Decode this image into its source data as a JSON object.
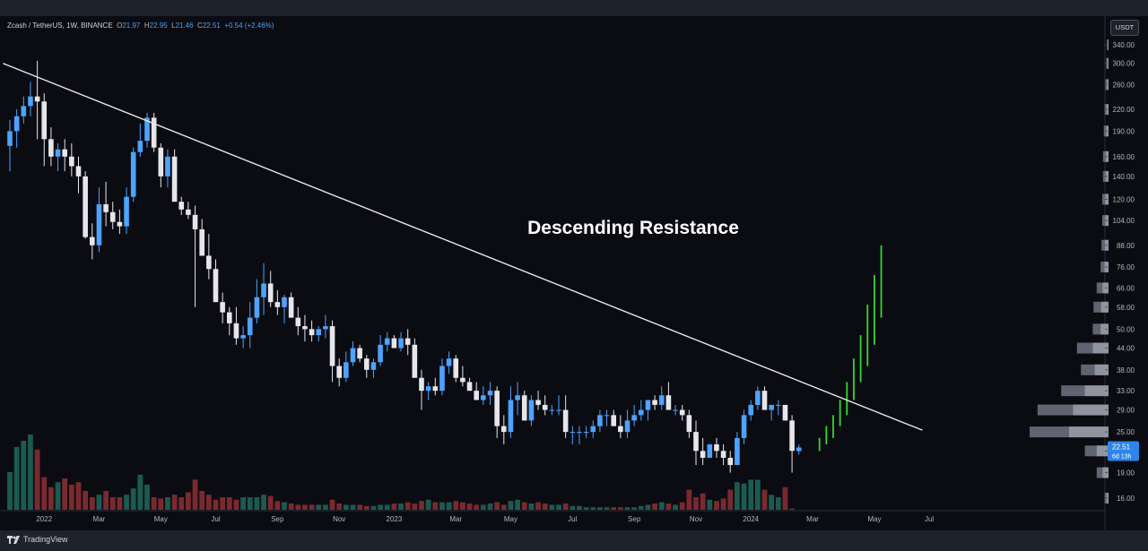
{
  "header": {
    "symbol": "Zcash / TetherUS, 1W, BINANCE",
    "open_label": "O",
    "open": "21.97",
    "high_label": "H",
    "high": "22.95",
    "low_label": "L",
    "low": "21.46",
    "close_label": "C",
    "close": "22.51",
    "change": "+0.54 (+2.46%)"
  },
  "currency_badge": "USDT",
  "footer": {
    "brand": "TradingView"
  },
  "colors": {
    "background": "#0b0c12",
    "candle_up": "#4da3ff",
    "candle_down": "#e6e6ea",
    "volume_up": "#1c5a50",
    "volume_down": "#7a2a2e",
    "projection": "#35d82f",
    "trendline": "#e8e8ec",
    "price_tag": "#2e85e8"
  },
  "chart_data": {
    "type": "candlestick",
    "y_scale": "log",
    "ylim": [
      15,
      370
    ],
    "y_ticks": [
      "340.00",
      "300.00",
      "260.00",
      "220.00",
      "190.00",
      "160.00",
      "140.00",
      "120.00",
      "104.00",
      "88.00",
      "76.00",
      "66.00",
      "58.00",
      "50.00",
      "44.00",
      "38.00",
      "33.00",
      "29.00",
      "25.00",
      "22.00",
      "19.00",
      "16.00"
    ],
    "x_ticks": [
      "2022",
      "Mar",
      "May",
      "Jul",
      "Sep",
      "Nov",
      "2023",
      "Mar",
      "May",
      "Jul",
      "Sep",
      "Nov",
      "2024",
      "Mar",
      "May",
      "Jul"
    ],
    "x_tick_weeks": [
      5,
      13,
      22,
      30,
      39,
      48,
      56,
      65,
      73,
      82,
      91,
      100,
      108,
      117,
      126,
      134
    ],
    "candles": [
      [
        172,
        145,
        205,
        190
      ],
      [
        190,
        170,
        220,
        210
      ],
      [
        210,
        200,
        240,
        225
      ],
      [
        225,
        210,
        265,
        240
      ],
      [
        240,
        180,
        305,
        232
      ],
      [
        232,
        150,
        245,
        180
      ],
      [
        180,
        150,
        195,
        160
      ],
      [
        160,
        145,
        175,
        168
      ],
      [
        168,
        145,
        180,
        160
      ],
      [
        160,
        140,
        175,
        150
      ],
      [
        150,
        125,
        160,
        140
      ],
      [
        140,
        92,
        145,
        93
      ],
      [
        93,
        80,
        102,
        88
      ],
      [
        88,
        84,
        130,
        116
      ],
      [
        116,
        100,
        135,
        110
      ],
      [
        110,
        98,
        118,
        103
      ],
      [
        103,
        95,
        112,
        100
      ],
      [
        100,
        95,
        130,
        122
      ],
      [
        122,
        118,
        170,
        165
      ],
      [
        165,
        160,
        200,
        178
      ],
      [
        178,
        170,
        215,
        208
      ],
      [
        208,
        165,
        215,
        170
      ],
      [
        170,
        130,
        175,
        140
      ],
      [
        140,
        130,
        168,
        160
      ],
      [
        160,
        120,
        168,
        118
      ],
      [
        118,
        108,
        122,
        112
      ],
      [
        112,
        105,
        118,
        108
      ],
      [
        108,
        58,
        115,
        98
      ],
      [
        98,
        82,
        105,
        82
      ],
      [
        82,
        70,
        95,
        75
      ],
      [
        75,
        60,
        80,
        60
      ],
      [
        60,
        52,
        64,
        56
      ],
      [
        56,
        48,
        58,
        52
      ],
      [
        52,
        45,
        58,
        47
      ],
      [
        47,
        44,
        51,
        48
      ],
      [
        48,
        44,
        60,
        54
      ],
      [
        54,
        52,
        70,
        62
      ],
      [
        62,
        55,
        78,
        68
      ],
      [
        68,
        58,
        74,
        60
      ],
      [
        60,
        55,
        65,
        58
      ],
      [
        58,
        52,
        63,
        62
      ],
      [
        62,
        54,
        64,
        54
      ],
      [
        54,
        48,
        58,
        51
      ],
      [
        51,
        46,
        55,
        50
      ],
      [
        50,
        46,
        53,
        48
      ],
      [
        48,
        46,
        51,
        50
      ],
      [
        50,
        47,
        55,
        51
      ],
      [
        51,
        35,
        53,
        39
      ],
      [
        39,
        34,
        41,
        36
      ],
      [
        36,
        35,
        43,
        40
      ],
      [
        40,
        39,
        46,
        44
      ],
      [
        44,
        40,
        45,
        41
      ],
      [
        41,
        36,
        42,
        38
      ],
      [
        38,
        36,
        41,
        40
      ],
      [
        40,
        39,
        48,
        45
      ],
      [
        45,
        43,
        49,
        47
      ],
      [
        47,
        44,
        48,
        44
      ],
      [
        44,
        43,
        49,
        47
      ],
      [
        47,
        42,
        50,
        45
      ],
      [
        45,
        37,
        47,
        36
      ],
      [
        36,
        29,
        38,
        33
      ],
      [
        33,
        31,
        35,
        34
      ],
      [
        34,
        32,
        36,
        33
      ],
      [
        33,
        32,
        41,
        39
      ],
      [
        39,
        37,
        43,
        41
      ],
      [
        41,
        35,
        42,
        36
      ],
      [
        36,
        34,
        39,
        35
      ],
      [
        35,
        33,
        36,
        33
      ],
      [
        33,
        31,
        35,
        31
      ],
      [
        31,
        30,
        34,
        32
      ],
      [
        32,
        30,
        35,
        33
      ],
      [
        33,
        24,
        34,
        26
      ],
      [
        26,
        23,
        28,
        25
      ],
      [
        25,
        24,
        34,
        31
      ],
      [
        31,
        28,
        35,
        32
      ],
      [
        32,
        27,
        33,
        27
      ],
      [
        27,
        26,
        32,
        31
      ],
      [
        31,
        29,
        33,
        30
      ],
      [
        30,
        28,
        32,
        29
      ],
      [
        29,
        28,
        30,
        29
      ],
      [
        29,
        28,
        32,
        29
      ],
      [
        29,
        24,
        32,
        25
      ],
      [
        25,
        23,
        26,
        25
      ],
      [
        25,
        23,
        26,
        25
      ],
      [
        25,
        24,
        26,
        25
      ],
      [
        25,
        24,
        27,
        26
      ],
      [
        26,
        25,
        29,
        28
      ],
      [
        28,
        26,
        29,
        28
      ],
      [
        28,
        26,
        29,
        26
      ],
      [
        26,
        24,
        28,
        25
      ],
      [
        25,
        24,
        29,
        27
      ],
      [
        27,
        26,
        30,
        28
      ],
      [
        28,
        27,
        31,
        29
      ],
      [
        29,
        27,
        31,
        31
      ],
      [
        31,
        29,
        32,
        30
      ],
      [
        30,
        29,
        34,
        32
      ],
      [
        32,
        30,
        35,
        29
      ],
      [
        29,
        28,
        30,
        29
      ],
      [
        29,
        27,
        30,
        28
      ],
      [
        28,
        24,
        29,
        25
      ],
      [
        25,
        20,
        27,
        22
      ],
      [
        22,
        20,
        24,
        21
      ],
      [
        21,
        21,
        23,
        23
      ],
      [
        23,
        21,
        24,
        22
      ],
      [
        22,
        20,
        23,
        21
      ],
      [
        21,
        19,
        22,
        20
      ],
      [
        20,
        20,
        25,
        24
      ],
      [
        24,
        23,
        29,
        28
      ],
      [
        28,
        27,
        31,
        30
      ],
      [
        30,
        29,
        34,
        33
      ],
      [
        33,
        29,
        34,
        29
      ],
      [
        29,
        27,
        30,
        30
      ],
      [
        30,
        28,
        31,
        30
      ],
      [
        30,
        27,
        30,
        27
      ],
      [
        27,
        19,
        28,
        22
      ],
      [
        21.97,
        21.46,
        22.95,
        22.51
      ]
    ],
    "volume_relative": [
      0.3,
      0.5,
      0.55,
      0.6,
      0.48,
      0.26,
      0.18,
      0.22,
      0.25,
      0.2,
      0.22,
      0.15,
      0.1,
      0.12,
      0.15,
      0.1,
      0.1,
      0.12,
      0.17,
      0.28,
      0.2,
      0.1,
      0.09,
      0.1,
      0.12,
      0.1,
      0.14,
      0.24,
      0.15,
      0.12,
      0.08,
      0.1,
      0.1,
      0.08,
      0.1,
      0.1,
      0.1,
      0.12,
      0.11,
      0.07,
      0.06,
      0.05,
      0.04,
      0.04,
      0.04,
      0.04,
      0.04,
      0.08,
      0.05,
      0.04,
      0.04,
      0.04,
      0.03,
      0.03,
      0.04,
      0.04,
      0.05,
      0.05,
      0.06,
      0.05,
      0.07,
      0.08,
      0.06,
      0.06,
      0.06,
      0.07,
      0.06,
      0.05,
      0.04,
      0.04,
      0.05,
      0.06,
      0.04,
      0.07,
      0.08,
      0.06,
      0.05,
      0.06,
      0.05,
      0.04,
      0.04,
      0.05,
      0.03,
      0.03,
      0.02,
      0.02,
      0.02,
      0.02,
      0.02,
      0.02,
      0.02,
      0.02,
      0.03,
      0.04,
      0.05,
      0.06,
      0.05,
      0.04,
      0.06,
      0.16,
      0.1,
      0.13,
      0.08,
      0.07,
      0.09,
      0.16,
      0.22,
      0.21,
      0.24,
      0.24,
      0.16,
      0.12,
      0.1,
      0.18,
      0.01
    ],
    "volume_profile_relative": [
      [
        340,
        0.02
      ],
      [
        300,
        0.03
      ],
      [
        260,
        0.04
      ],
      [
        220,
        0.05
      ],
      [
        190,
        0.06
      ],
      [
        160,
        0.07
      ],
      [
        140,
        0.07
      ],
      [
        120,
        0.08
      ],
      [
        104,
        0.08
      ],
      [
        88,
        0.09
      ],
      [
        76,
        0.1
      ],
      [
        66,
        0.15
      ],
      [
        58,
        0.19
      ],
      [
        50,
        0.2
      ],
      [
        44,
        0.4
      ],
      [
        38,
        0.35
      ],
      [
        33,
        0.6
      ],
      [
        29,
        0.9
      ],
      [
        25,
        1.0
      ],
      [
        22,
        0.3
      ],
      [
        19,
        0.15
      ],
      [
        16,
        0.05
      ]
    ],
    "trendline": {
      "from": {
        "week": -1,
        "price": 300
      },
      "to": {
        "week": 133,
        "price": 25.3
      }
    },
    "annotation": "Descending Resistance",
    "projection": [
      [
        118,
        22,
        24
      ],
      [
        119,
        23,
        26
      ],
      [
        120,
        24,
        28
      ],
      [
        121,
        26,
        31
      ],
      [
        122,
        28,
        35
      ],
      [
        123,
        31,
        41
      ],
      [
        124,
        35,
        48
      ],
      [
        125,
        39,
        59
      ],
      [
        126,
        45,
        72
      ],
      [
        127,
        54,
        88
      ]
    ],
    "last_price": "22.51",
    "countdown": "6d 13h"
  }
}
